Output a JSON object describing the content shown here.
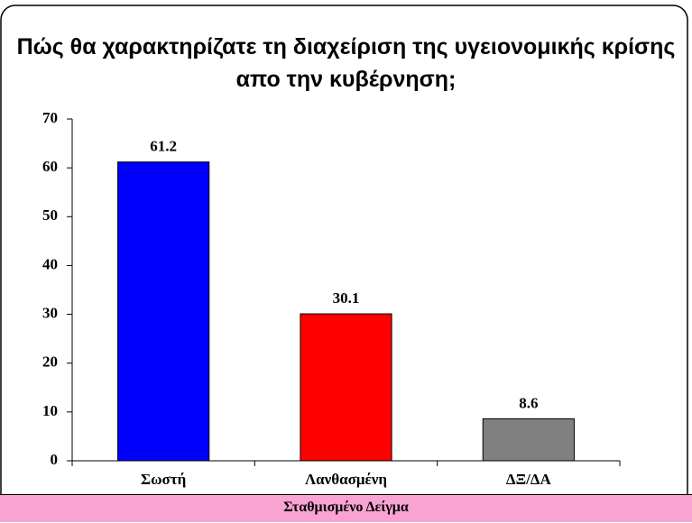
{
  "chart_data": {
    "type": "bar",
    "title": "Πώς θα χαρακτηρίζατε τη διαχείριση της υγειονομικής κρίσης απο την κυβέρνηση;",
    "categories": [
      "Σωστή",
      "Λανθασμένη",
      "ΔΞ/ΔΑ"
    ],
    "values": [
      61.2,
      30.1,
      8.6
    ],
    "colors": [
      "#0000ff",
      "#ff0000",
      "#808080"
    ],
    "ylim": [
      0,
      70
    ],
    "yticks": [
      0,
      10,
      20,
      30,
      40,
      50,
      60,
      70
    ],
    "grid": false
  },
  "footer": {
    "text": "Σταθμισμένο Δείγμα"
  }
}
